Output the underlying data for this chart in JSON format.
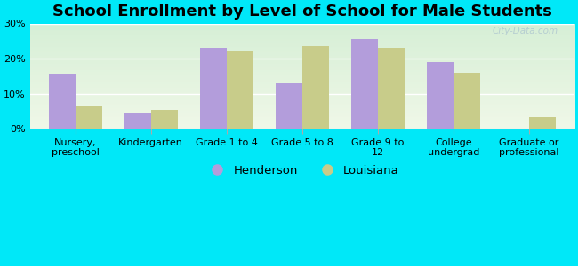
{
  "title": "School Enrollment by Level of School for Male Students",
  "categories": [
    "Nursery,\npreschool",
    "Kindergarten",
    "Grade 1 to 4",
    "Grade 5 to 8",
    "Grade 9 to\n12",
    "College\nundergrad",
    "Graduate or\nprofessional"
  ],
  "henderson": [
    15.5,
    4.5,
    23.0,
    13.0,
    25.5,
    19.0,
    0.0
  ],
  "louisiana": [
    6.5,
    5.5,
    22.0,
    23.5,
    23.0,
    16.0,
    3.5
  ],
  "henderson_color": "#b39ddb",
  "louisiana_color": "#c8cc8a",
  "background_color": "#00e8f8",
  "plot_bg_top": "#d6efd6",
  "plot_bg_bottom": "#f0f8e8",
  "ylim": [
    0,
    30
  ],
  "yticks": [
    0,
    10,
    20,
    30
  ],
  "bar_width": 0.35,
  "legend_henderson": "Henderson",
  "legend_louisiana": "Louisiana",
  "title_fontsize": 13,
  "tick_fontsize": 8,
  "legend_fontsize": 9.5,
  "watermark": "City-Data.com"
}
